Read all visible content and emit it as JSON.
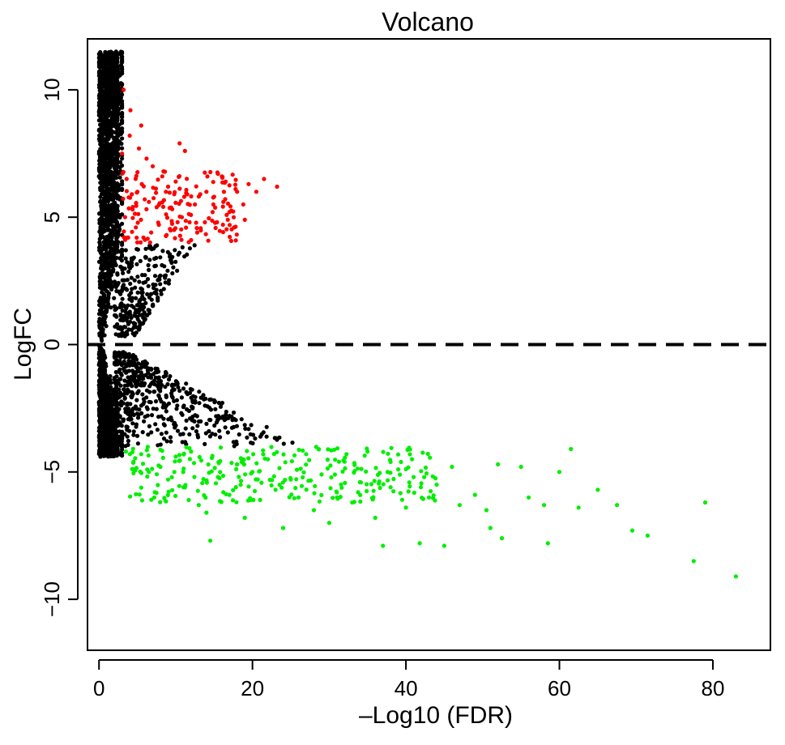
{
  "chart_data": {
    "type": "scatter",
    "title": "Volcano",
    "xlabel": "–Log10 (FDR)",
    "ylabel": "LogFC",
    "xlim": [
      -1.5,
      87.5
    ],
    "ylim": [
      -12,
      12
    ],
    "x_ticks": [
      0,
      20,
      40,
      60,
      80
    ],
    "y_ticks": [
      -10,
      -5,
      0,
      5,
      10
    ],
    "x_tick_labels": [
      "0",
      "20",
      "40",
      "60",
      "80"
    ],
    "y_tick_labels": [
      "−10",
      "−5",
      "0",
      "5",
      "10"
    ],
    "reference_line": {
      "y": 0,
      "style": "dashed"
    },
    "grid": false,
    "legend": "none",
    "colors": {
      "up": "#ff0000",
      "down": "#00ee00",
      "not_significant": "#000000"
    },
    "series": [
      {
        "category": "up",
        "points": [
          [
            3.2,
            10.0
          ],
          [
            4.1,
            9.2
          ],
          [
            5.5,
            8.6
          ],
          [
            6.2,
            7.3
          ],
          [
            7.0,
            7.0
          ],
          [
            10.5,
            7.9
          ],
          [
            11.2,
            7.6
          ],
          [
            8.4,
            6.8
          ],
          [
            3.6,
            6.5
          ],
          [
            5.0,
            6.0
          ],
          [
            6.5,
            5.6
          ],
          [
            9.0,
            6.2
          ],
          [
            10.0,
            6.4
          ],
          [
            11.5,
            5.9
          ],
          [
            12.5,
            5.5
          ],
          [
            13.2,
            5.9
          ],
          [
            14.0,
            6.0
          ],
          [
            15.0,
            5.8
          ],
          [
            16.2,
            5.6
          ],
          [
            17.0,
            5.2
          ],
          [
            18.0,
            6.0
          ],
          [
            18.8,
            5.5
          ],
          [
            19.5,
            6.3
          ],
          [
            20.5,
            6.0
          ],
          [
            21.5,
            6.5
          ],
          [
            23.2,
            6.2
          ],
          [
            16.5,
            6.4
          ],
          [
            15.5,
            6.7
          ],
          [
            14.8,
            5.2
          ],
          [
            13.8,
            4.8
          ],
          [
            12.8,
            4.4
          ],
          [
            11.8,
            4.8
          ],
          [
            10.8,
            5.0
          ],
          [
            9.8,
            4.5
          ],
          [
            8.8,
            4.3
          ],
          [
            7.8,
            4.7
          ],
          [
            6.8,
            4.4
          ],
          [
            5.8,
            4.2
          ],
          [
            4.8,
            4.6
          ],
          [
            3.8,
            4.2
          ],
          [
            3.4,
            5.0
          ],
          [
            4.4,
            5.4
          ],
          [
            5.2,
            7.7
          ],
          [
            4.0,
            8.2
          ],
          [
            3.0,
            7.5
          ],
          [
            12.0,
            4.1
          ],
          [
            17.6,
            4.6
          ],
          [
            19.0,
            4.9
          ]
        ]
      },
      {
        "category": "down",
        "points": [
          [
            3.5,
            -4.2
          ],
          [
            4.5,
            -4.6
          ],
          [
            5.5,
            -4.3
          ],
          [
            6.5,
            -5.0
          ],
          [
            7.2,
            -6.0
          ],
          [
            8.0,
            -4.8
          ],
          [
            9.0,
            -5.3
          ],
          [
            10.0,
            -4.4
          ],
          [
            11.0,
            -5.6
          ],
          [
            12.0,
            -4.2
          ],
          [
            13.0,
            -6.3
          ],
          [
            14.0,
            -6.6
          ],
          [
            14.5,
            -7.7
          ],
          [
            15.5,
            -5.2
          ],
          [
            17.0,
            -5.9
          ],
          [
            18.0,
            -4.7
          ],
          [
            19.0,
            -6.8
          ],
          [
            20.0,
            -5.0
          ],
          [
            21.0,
            -6.1
          ],
          [
            22.0,
            -4.5
          ],
          [
            23.0,
            -5.7
          ],
          [
            24.0,
            -7.2
          ],
          [
            25.0,
            -5.3
          ],
          [
            26.0,
            -6.0
          ],
          [
            27.0,
            -4.3
          ],
          [
            28.0,
            -6.5
          ],
          [
            29.0,
            -5.1
          ],
          [
            30.0,
            -7.0
          ],
          [
            31.0,
            -5.8
          ],
          [
            32.0,
            -4.6
          ],
          [
            33.0,
            -6.2
          ],
          [
            34.0,
            -5.4
          ],
          [
            35.0,
            -4.2
          ],
          [
            36.0,
            -6.8
          ],
          [
            37.0,
            -7.9
          ],
          [
            38.0,
            -5.6
          ],
          [
            39.0,
            -4.9
          ],
          [
            40.0,
            -6.4
          ],
          [
            41.0,
            -5.2
          ],
          [
            41.8,
            -7.8
          ],
          [
            43.0,
            -6.0
          ],
          [
            44.0,
            -5.5
          ],
          [
            45.0,
            -7.9
          ],
          [
            46.0,
            -4.8
          ],
          [
            47.0,
            -6.3
          ],
          [
            50.5,
            -6.5
          ],
          [
            51.0,
            -7.2
          ],
          [
            52.0,
            -4.7
          ],
          [
            52.5,
            -7.6
          ],
          [
            55.0,
            -4.8
          ],
          [
            58.0,
            -6.3
          ],
          [
            58.5,
            -7.8
          ],
          [
            61.5,
            -4.1
          ],
          [
            62.5,
            -6.4
          ],
          [
            65.0,
            -5.7
          ],
          [
            67.5,
            -6.3
          ],
          [
            69.5,
            -7.3
          ],
          [
            71.5,
            -7.5
          ],
          [
            77.5,
            -8.5
          ],
          [
            79.0,
            -6.2
          ],
          [
            83.0,
            -9.1
          ],
          [
            49.0,
            -5.9
          ],
          [
            56.0,
            -6.0
          ],
          [
            60.0,
            -5.0
          ]
        ]
      }
    ]
  }
}
